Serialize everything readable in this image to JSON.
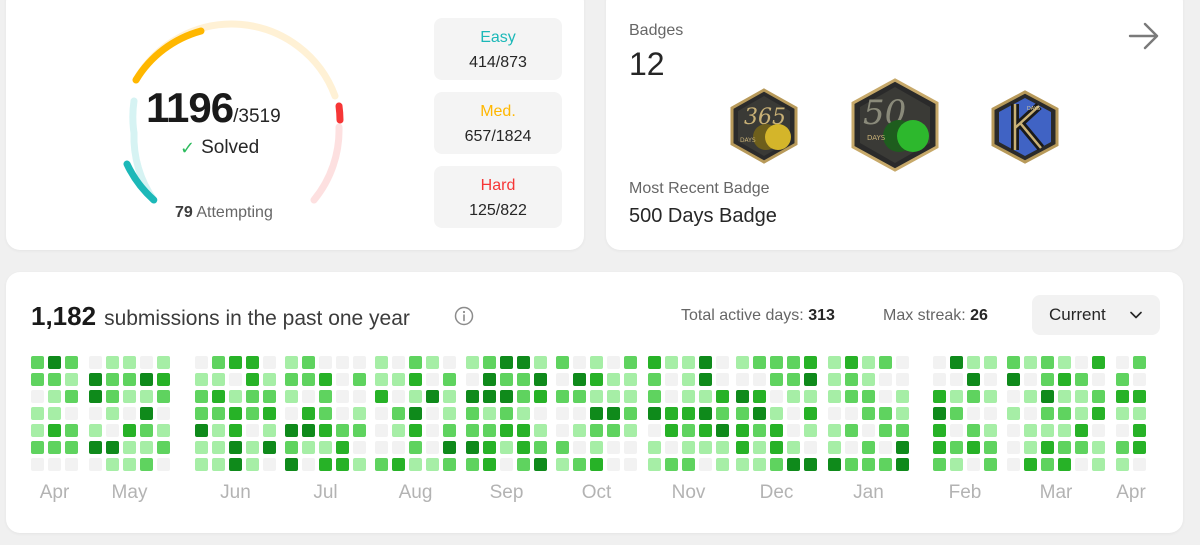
{
  "progress": {
    "solved": "1196",
    "total": "/3519",
    "solved_label": "Solved",
    "attempting_count": "79",
    "attempting_label": "Attempting",
    "difficulties": [
      {
        "label": "Easy",
        "value": "414/873",
        "color": "#1cb8b8"
      },
      {
        "label": "Med.",
        "value": "657/1824",
        "color": "#ffb700"
      },
      {
        "label": "Hard",
        "value": "125/822",
        "color": "#f63636"
      }
    ]
  },
  "badges": {
    "label": "Badges",
    "count": "12",
    "recent_label": "Most Recent Badge",
    "recent_name": "500 Days Badge",
    "items": [
      {
        "icon": "365-days-badge-icon"
      },
      {
        "icon": "500-days-badge-icon"
      },
      {
        "icon": "k-badge-icon"
      }
    ]
  },
  "activity": {
    "count": "1,182",
    "text": "submissions in the past one year",
    "active_label": "Total active days:",
    "active_value": "313",
    "streak_label": "Max streak:",
    "streak_value": "26",
    "select_value": "Current",
    "months": [
      "Apr",
      "May",
      "Jun",
      "Jul",
      "Aug",
      "Sep",
      "Oct",
      "Nov",
      "Dec",
      "Jan",
      "Feb",
      "Mar",
      "Apr"
    ],
    "colors": {
      "empty": "#f2f2f2",
      "l1": "#a6eea6",
      "l2": "#5fd35f",
      "l3": "#27b227",
      "l4": "#0f8a1b"
    }
  }
}
